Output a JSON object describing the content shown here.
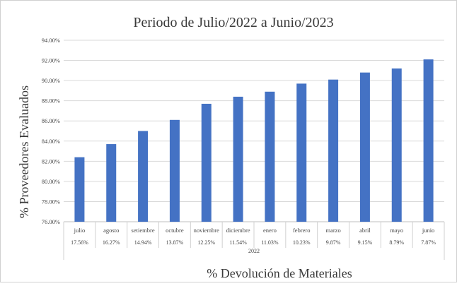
{
  "chart_data": {
    "type": "bar",
    "title": "Periodo de Julio/2022 a Junio/2023",
    "xlabel": "% Devolución de Materiales",
    "ylabel": "% Proveedores Evaluados",
    "ylim": [
      76.0,
      94.0
    ],
    "y_ticks": [
      "76.00%",
      "78.00%",
      "80.00%",
      "82.00%",
      "84.00%",
      "86.00%",
      "88.00%",
      "90.00%",
      "92.00%",
      "94.00%"
    ],
    "grid": true,
    "categories": [
      "julio",
      "agosto",
      "setiembre",
      "octubre",
      "noviembre",
      "diciembre",
      "enero",
      "febrero",
      "marzo",
      "abril",
      "mayo",
      "junio"
    ],
    "sub_labels": [
      "17.56%",
      "16.27%",
      "14.94%",
      "13.87%",
      "12.25%",
      "11.54%",
      "11.03%",
      "10.23%",
      "9.87%",
      "9.15%",
      "8.79%",
      "7.87%"
    ],
    "group_label": "2022",
    "values": [
      82.4,
      83.7,
      85.0,
      86.1,
      87.7,
      88.4,
      88.9,
      89.7,
      90.1,
      90.8,
      91.2,
      92.1
    ],
    "bar_color": "#4472C4",
    "grid_color": "#d9d9d9"
  }
}
